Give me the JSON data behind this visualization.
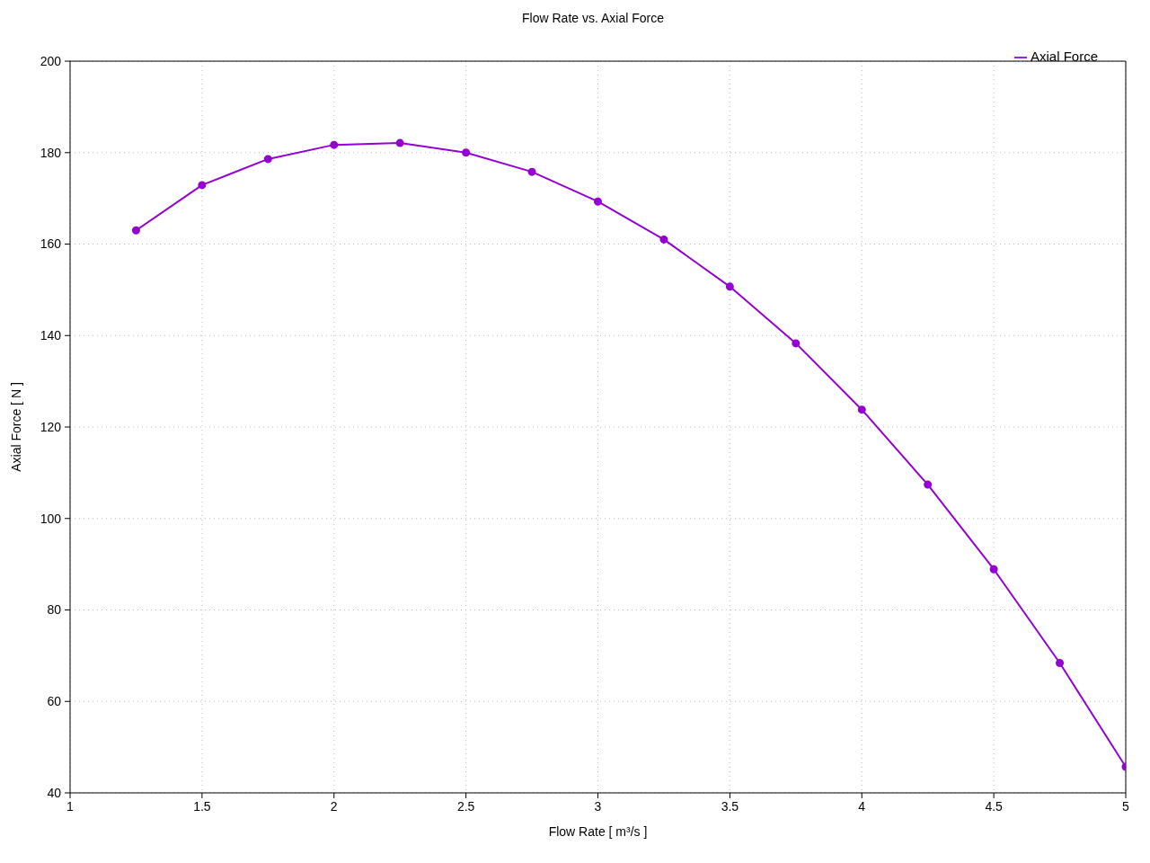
{
  "chart_data": {
    "type": "line",
    "title": "Flow Rate vs. Axial Force",
    "xlabel": "Flow Rate [ m³/s ]",
    "ylabel": "Axial Force [ N ]",
    "x": [
      1.25,
      1.5,
      1.75,
      2,
      2.25,
      2.5,
      2.75,
      3,
      3.25,
      3.5,
      3.75,
      4,
      4.25,
      4.5,
      4.75,
      5
    ],
    "series": [
      {
        "name": "Axial Force",
        "color": "#9400d3",
        "values": [
          163,
          172.9,
          178.6,
          181.7,
          182.1,
          180,
          175.8,
          169.3,
          161,
          150.7,
          138.3,
          123.8,
          107.4,
          88.9,
          68.4,
          45.7
        ]
      }
    ],
    "xlim": [
      1,
      5
    ],
    "xticks": [
      1,
      1.5,
      2,
      2.5,
      3,
      3.5,
      4,
      4.5,
      5
    ],
    "ylim": [
      40,
      200
    ],
    "yticks": [
      40,
      60,
      80,
      100,
      120,
      140,
      160,
      180,
      200
    ],
    "grid": true,
    "legend": "top right",
    "marker": "circle",
    "line_style": "solid"
  }
}
